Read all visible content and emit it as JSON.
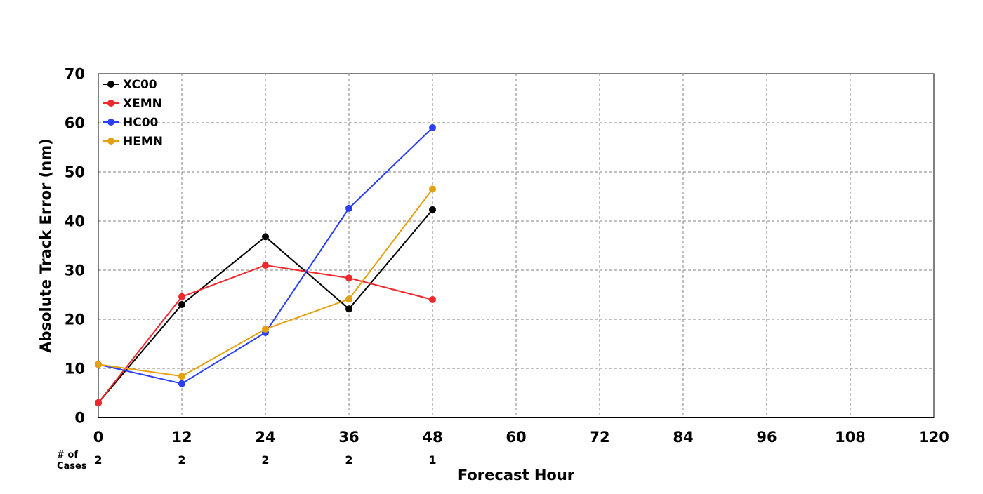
{
  "chart_data": {
    "type": "line",
    "title": "",
    "xlabel": "Forecast Hour",
    "ylabel": "Absolute Track Error (nm)",
    "xlim": [
      0,
      120
    ],
    "ylim": [
      0,
      70
    ],
    "x_ticks": [
      "0",
      "12",
      "24",
      "36",
      "48",
      "60",
      "72",
      "84",
      "96",
      "108",
      "120"
    ],
    "y_ticks": [
      "0",
      "10",
      "20",
      "30",
      "40",
      "50",
      "60",
      "70"
    ],
    "grid": true,
    "grid_style": "dashed",
    "legend_position": "top-left",
    "x": [
      0,
      12,
      24,
      36,
      48
    ],
    "series": [
      {
        "name": "XC00",
        "color": "#000000",
        "values": [
          3.0,
          23.0,
          36.8,
          22.1,
          42.3
        ]
      },
      {
        "name": "XEMN",
        "color": "#f0282d",
        "values": [
          3.0,
          24.6,
          31.0,
          28.4,
          24.0
        ]
      },
      {
        "name": "HC00",
        "color": "#2a3ff5",
        "values": [
          10.8,
          6.9,
          17.3,
          42.6,
          59.0
        ]
      },
      {
        "name": "HEMN",
        "color": "#e4a010",
        "values": [
          10.8,
          8.4,
          18.0,
          24.1,
          46.5
        ]
      }
    ],
    "cases": {
      "label_line1": "# of",
      "label_line2": "Cases",
      "values": [
        "2",
        "2",
        "2",
        "2",
        "1"
      ]
    }
  }
}
